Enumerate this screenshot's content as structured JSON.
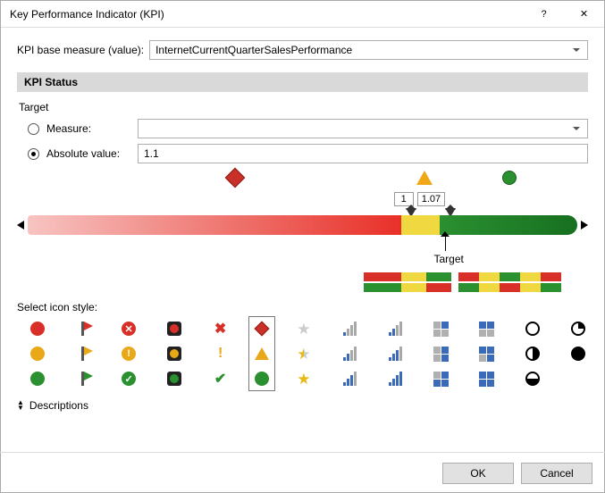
{
  "window_title": "Key Performance Indicator (KPI)",
  "base_measure_label": "KPI base measure (value):",
  "base_measure_value": "InternetCurrentQuarterSalesPerformance",
  "status_section": "KPI Status",
  "target_label": "Target",
  "measure_radio_label": "Measure:",
  "measure_selected": false,
  "measure_combo_value": "",
  "absolute_radio_label": "Absolute value:",
  "absolute_selected": true,
  "absolute_value": "1.1",
  "slider": {
    "threshold_low": "1",
    "threshold_high": "1.07",
    "target_label": "Target",
    "low_pos_pct": 68,
    "high_pos_pct": 75,
    "target_pos_pct": 75,
    "diamond_pos_pct": 37,
    "triangle_pos_pct": 71,
    "circle_pos_pct": 85,
    "colors": {
      "red": "#e83028",
      "red_light": "#f7c4c2",
      "yellow": "#f0d840",
      "green": "#2a9030",
      "green_dark": "#177020"
    }
  },
  "palette_colors": {
    "red": "#d83028",
    "yellow": "#f0d840",
    "green": "#2a9030"
  },
  "select_icon_label": "Select icon style:",
  "selected_style_index": 5,
  "icon_columns": [
    "balls",
    "flags",
    "status-balls",
    "traffic-lights",
    "symbols",
    "shapes",
    "stars",
    "signal-bars-a",
    "signal-bars-b",
    "quadrants-a",
    "quadrants-b",
    "pies-a",
    "pies-b"
  ],
  "descriptions_label": "Descriptions",
  "buttons": {
    "ok": "OK",
    "cancel": "Cancel"
  }
}
